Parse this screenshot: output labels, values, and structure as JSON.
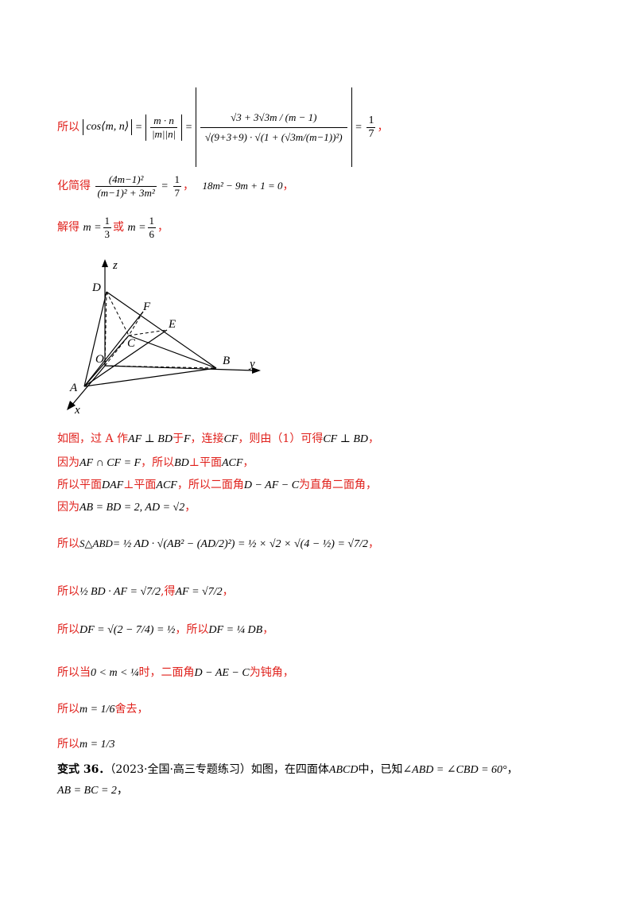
{
  "lines": {
    "l1_prefix": "所以",
    "l1_cos": "cos⟨m, n⟩",
    "l1_eq1": "=",
    "l1_frac1_num": "m · n",
    "l1_frac1_den": "|m||n|",
    "l1_eq2": "=",
    "l1_frac2_num": "√3 + 3√3m / (m − 1)",
    "l1_frac2_den": "√(9+3+9) · √(1 + (√3m/(m−1))²)",
    "l1_eq3": "=",
    "l1_result_num": "1",
    "l1_result_den": "7",
    "l1_tail": "，",
    "l2_prefix": "化简得",
    "l2_num": "(4m−1)²",
    "l2_den": "(m−1)² + 3m²",
    "l2_eq": "=",
    "l2_rnum": "1",
    "l2_rden": "7",
    "l2_sep": "，",
    "l2_eq2": "18m² − 9m + 1 = 0",
    "l2_tail": "，",
    "l3_prefix": "解得",
    "l3_m1": "m =",
    "l3_n1": "1",
    "l3_d1": "3",
    "l3_or": "或",
    "l3_m2": "m =",
    "l3_n2": "1",
    "l3_d2": "6",
    "l3_tail": "，",
    "p1_a": "如图，过 A 作",
    "p1_b": "AF ⊥ BD",
    "p1_c": "于",
    "p1_d": "F",
    "p1_e": "，连接",
    "p1_f": "CF",
    "p1_g": "，则由（1）可得",
    "p1_h": "CF ⊥ BD",
    "p1_i": "，",
    "p2_a": "因为",
    "p2_b": "AF ∩ CF = F",
    "p2_c": "，所以",
    "p2_d": "BD",
    "p2_e": "⊥平面",
    "p2_f": "ACF",
    "p2_g": "，",
    "p3_a": "所以平面",
    "p3_b": "DAF",
    "p3_c": "⊥平面",
    "p3_d": "ACF",
    "p3_e": "，所以二面角",
    "p3_f": "D − AF − C",
    "p3_g": "为直角二面角，",
    "p4_a": "因为",
    "p4_b": "AB = BD = 2, AD = √2",
    "p4_c": "，",
    "p5_a": "所以",
    "p5_b": "S△ABD",
    "p5_c": "= ½ AD · √(AB² − (AD/2)²) = ½ × √2 × √(4 − ½) = √7/2",
    "p5_d": "，",
    "p6_a": "所以",
    "p6_b": "½ BD · AF = √7/2",
    "p6_c": ",得",
    "p6_d": "AF = √7/2",
    "p6_e": "，",
    "p7_a": "所以",
    "p7_b": "DF = √(2 − 7/4) = ½",
    "p7_c": "，所以",
    "p7_d": "DF = ¼ DB",
    "p7_e": "，",
    "p8_a": "所以当",
    "p8_b": "0 < m < ¼",
    "p8_c": "时，二面角",
    "p8_d": "D − AE − C",
    "p8_e": "为钝角，",
    "p9_a": "所以",
    "p9_b": "m = 1/6",
    "p9_c": "舍去，",
    "p10_a": "所以",
    "p10_b": "m = 1/3",
    "v_title": "变式 36．",
    "v_text": "（2023·全国·高三专题练习）如图，在四面体",
    "v_abcd": "ABCD",
    "v_text2": "中，已知",
    "v_angle": "∠ABD = ∠CBD = 60°",
    "v_tail": "，",
    "v_line2": "AB = BC = 2",
    "v_line2_tail": "，"
  },
  "figure": {
    "labels": {
      "z": "z",
      "y": "y",
      "x": "x",
      "D": "D",
      "F": "F",
      "E": "E",
      "C": "C",
      "O": "O",
      "B": "B",
      "A": "A"
    }
  },
  "colors": {
    "red": "#e0201b",
    "black": "#000000"
  }
}
